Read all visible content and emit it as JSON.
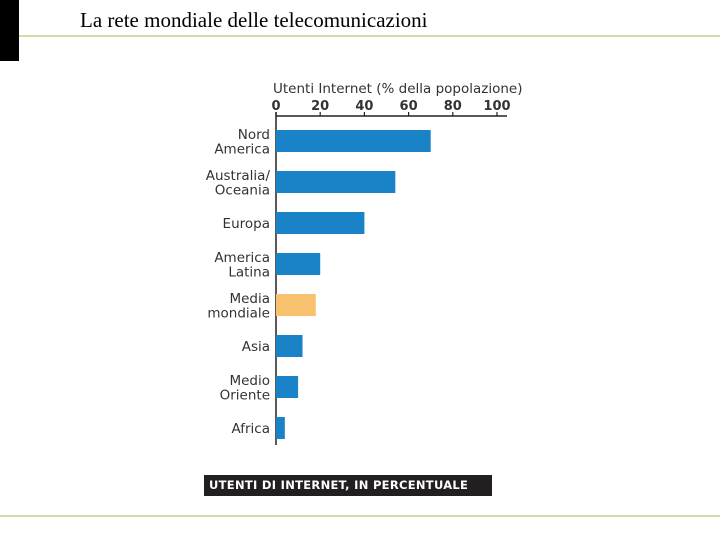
{
  "slide": {
    "title": "La rete mondiale delle telecomunicazioni"
  },
  "chart_data": {
    "type": "bar",
    "orientation": "horizontal",
    "title": "Utenti Internet (% della popolazione)",
    "caption": "UTENTI DI INTERNET, IN PERCENTUALE",
    "xlim": [
      0,
      100
    ],
    "xticks": [
      "0",
      "20",
      "40",
      "60",
      "80",
      "100"
    ],
    "xtick_values": [
      0,
      20,
      40,
      60,
      80,
      100
    ],
    "axis_position": "top",
    "grid": false,
    "categories": [
      [
        "Nord",
        "America"
      ],
      [
        "Australia/",
        "Oceania"
      ],
      [
        "Europa"
      ],
      [
        "America",
        "Latina"
      ],
      [
        "Media",
        "mondiale"
      ],
      [
        "Asia"
      ],
      [
        "Medio",
        "Oriente"
      ],
      [
        "Africa"
      ]
    ],
    "values": [
      70,
      54,
      40,
      20,
      18,
      12,
      10,
      4
    ],
    "colors": [
      "#1a82c6",
      "#1a82c6",
      "#1a82c6",
      "#1a82c6",
      "#f8c16e",
      "#1a82c6",
      "#1a82c6",
      "#1a82c6"
    ],
    "bar_color": "#1a82c6",
    "highlight_color": "#f8c16e",
    "highlight_category": "Media mondiale"
  }
}
